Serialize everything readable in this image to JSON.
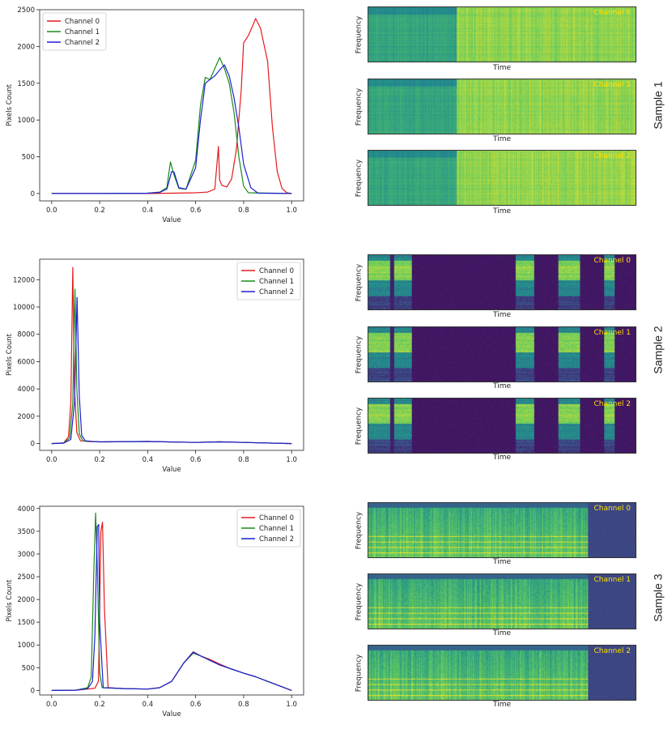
{
  "sample_labels": [
    "Sample 1",
    "Sample 2",
    "Sample 3"
  ],
  "spectrogram_axis": {
    "xlabel": "Time",
    "ylabel": "Frequency"
  },
  "spectrogram_channels": [
    "Channel 0",
    "Channel 1",
    "Channel 2"
  ],
  "colors": {
    "channel_0": "#e41a1c",
    "channel_1": "#1a8a1a",
    "channel_2": "#1f1fd6",
    "spectrogram_label": "#ffe000"
  },
  "chart_data": [
    {
      "type": "line",
      "title": "",
      "xlabel": "Value",
      "ylabel": "Pixels Count",
      "xlim": [
        0,
        1
      ],
      "ylim": [
        -100,
        2500
      ],
      "xticks": [
        0.0,
        0.2,
        0.4,
        0.6,
        0.8,
        1.0
      ],
      "xtick_labels": [
        "0.0",
        "0.2",
        "0.4",
        "0.6",
        "0.8",
        "1.0"
      ],
      "yticks": [
        0,
        500,
        1000,
        1500,
        2000,
        2500
      ],
      "legend": "top-left",
      "series": [
        {
          "name": "Channel 0",
          "x": [
            0,
            0.1,
            0.2,
            0.3,
            0.4,
            0.5,
            0.6,
            0.65,
            0.68,
            0.695,
            0.7,
            0.71,
            0.73,
            0.75,
            0.77,
            0.79,
            0.8,
            0.82,
            0.84,
            0.85,
            0.87,
            0.9,
            0.92,
            0.94,
            0.96,
            0.98,
            1.0
          ],
          "y": [
            0,
            0,
            0,
            0,
            0,
            5,
            10,
            20,
            60,
            640,
            180,
            110,
            90,
            200,
            600,
            1400,
            2050,
            2150,
            2300,
            2380,
            2250,
            1800,
            900,
            300,
            70,
            10,
            0
          ]
        },
        {
          "name": "Channel 1",
          "x": [
            0,
            0.2,
            0.4,
            0.45,
            0.48,
            0.495,
            0.51,
            0.53,
            0.56,
            0.6,
            0.62,
            0.64,
            0.66,
            0.68,
            0.7,
            0.72,
            0.74,
            0.76,
            0.78,
            0.8,
            0.82,
            1.0
          ],
          "y": [
            0,
            0,
            5,
            20,
            80,
            430,
            250,
            70,
            60,
            450,
            1200,
            1580,
            1550,
            1700,
            1850,
            1700,
            1500,
            1100,
            500,
            100,
            10,
            0
          ]
        },
        {
          "name": "Channel 2",
          "x": [
            0,
            0.2,
            0.4,
            0.45,
            0.48,
            0.5,
            0.51,
            0.53,
            0.56,
            0.6,
            0.62,
            0.64,
            0.66,
            0.68,
            0.7,
            0.72,
            0.74,
            0.76,
            0.78,
            0.8,
            0.83,
            0.86,
            1.0
          ],
          "y": [
            0,
            0,
            5,
            15,
            60,
            300,
            290,
            80,
            60,
            350,
            1000,
            1500,
            1550,
            1600,
            1680,
            1750,
            1600,
            1300,
            900,
            400,
            80,
            5,
            0
          ]
        }
      ]
    },
    {
      "type": "line",
      "title": "",
      "xlabel": "Value",
      "ylabel": "Pixels Count",
      "xlim": [
        0,
        1
      ],
      "ylim": [
        -500,
        13500
      ],
      "xticks": [
        0.0,
        0.2,
        0.4,
        0.6,
        0.8,
        1.0
      ],
      "xtick_labels": [
        "0.0",
        "0.2",
        "0.4",
        "0.6",
        "0.8",
        "1.0"
      ],
      "yticks": [
        0,
        2000,
        4000,
        6000,
        8000,
        10000,
        12000
      ],
      "legend": "top-right",
      "series": [
        {
          "name": "Channel 0",
          "x": [
            0,
            0.05,
            0.07,
            0.08,
            0.088,
            0.095,
            0.105,
            0.12,
            0.15,
            0.2,
            0.4,
            0.6,
            0.7,
            0.8,
            1.0
          ],
          "y": [
            0,
            50,
            500,
            3000,
            12900,
            4000,
            800,
            200,
            150,
            120,
            150,
            80,
            130,
            80,
            0
          ]
        },
        {
          "name": "Channel 1",
          "x": [
            0,
            0.05,
            0.075,
            0.088,
            0.097,
            0.105,
            0.115,
            0.13,
            0.16,
            0.2,
            0.4,
            0.6,
            0.7,
            0.8,
            1.0
          ],
          "y": [
            0,
            40,
            400,
            3000,
            11300,
            4000,
            700,
            200,
            150,
            120,
            140,
            80,
            120,
            80,
            0
          ]
        },
        {
          "name": "Channel 2",
          "x": [
            0,
            0.05,
            0.08,
            0.095,
            0.106,
            0.115,
            0.125,
            0.14,
            0.17,
            0.2,
            0.4,
            0.6,
            0.7,
            0.8,
            1.0
          ],
          "y": [
            0,
            30,
            300,
            3000,
            10700,
            3500,
            600,
            200,
            150,
            120,
            150,
            80,
            120,
            80,
            0
          ]
        }
      ]
    },
    {
      "type": "line",
      "title": "",
      "xlabel": "Value",
      "ylabel": "Pixels Count",
      "xlim": [
        0,
        1
      ],
      "ylim": [
        -100,
        4050
      ],
      "xticks": [
        0.0,
        0.2,
        0.4,
        0.6,
        0.8,
        1.0
      ],
      "xtick_labels": [
        "0.0",
        "0.2",
        "0.4",
        "0.6",
        "0.8",
        "1.0"
      ],
      "yticks": [
        0,
        500,
        1000,
        1500,
        2000,
        2500,
        3000,
        3500,
        4000
      ],
      "legend": "top-right",
      "series": [
        {
          "name": "Channel 0",
          "x": [
            0,
            0.1,
            0.15,
            0.18,
            0.195,
            0.205,
            0.212,
            0.22,
            0.235,
            0.3,
            0.4,
            0.45,
            0.5,
            0.55,
            0.59,
            0.62,
            0.66,
            0.7,
            0.75,
            0.8,
            0.85,
            0.9,
            0.95,
            1.0
          ],
          "y": [
            0,
            5,
            30,
            50,
            200,
            3500,
            3700,
            1800,
            60,
            40,
            30,
            60,
            200,
            600,
            850,
            760,
            680,
            580,
            470,
            380,
            300,
            200,
            100,
            0
          ]
        },
        {
          "name": "Channel 1",
          "x": [
            0,
            0.1,
            0.15,
            0.165,
            0.175,
            0.183,
            0.19,
            0.2,
            0.21,
            0.3,
            0.4,
            0.45,
            0.5,
            0.55,
            0.59,
            0.62,
            0.66,
            0.7,
            0.75,
            0.8,
            0.85,
            0.9,
            0.95,
            1.0
          ],
          "y": [
            0,
            5,
            60,
            300,
            2500,
            3900,
            2800,
            400,
            60,
            40,
            30,
            60,
            200,
            600,
            820,
            760,
            660,
            560,
            470,
            380,
            300,
            200,
            100,
            0
          ]
        },
        {
          "name": "Channel 2",
          "x": [
            0,
            0.1,
            0.15,
            0.17,
            0.18,
            0.19,
            0.196,
            0.2,
            0.215,
            0.3,
            0.4,
            0.45,
            0.5,
            0.55,
            0.59,
            0.62,
            0.66,
            0.7,
            0.75,
            0.8,
            0.85,
            0.9,
            0.95,
            1.0
          ],
          "y": [
            0,
            5,
            40,
            200,
            1200,
            3600,
            3650,
            1500,
            60,
            40,
            30,
            60,
            200,
            600,
            840,
            760,
            660,
            560,
            470,
            380,
            300,
            200,
            100,
            0
          ]
        }
      ]
    }
  ]
}
